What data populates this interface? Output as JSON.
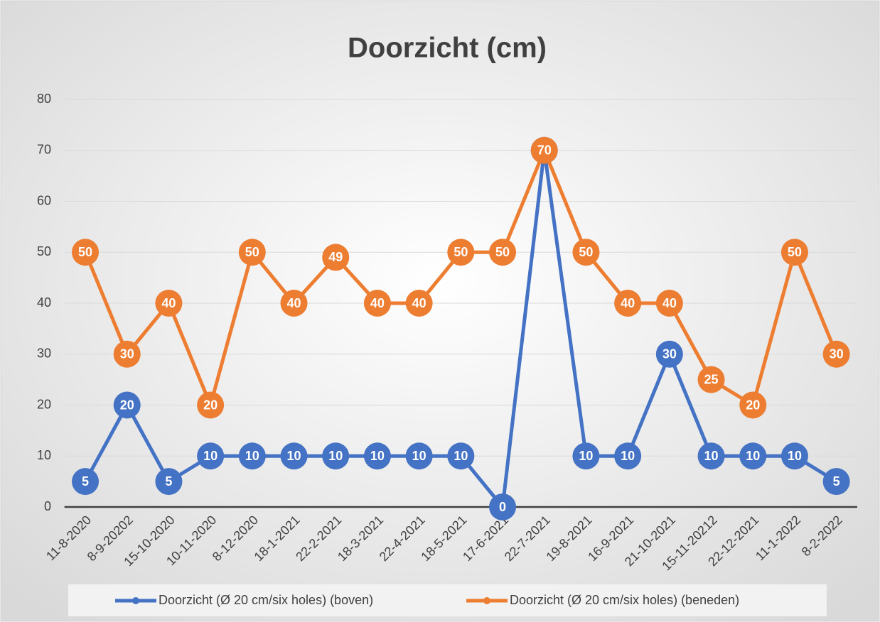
{
  "chart_data": {
    "type": "line",
    "title": "Doorzicht (cm)",
    "categories": [
      "11-8-2020",
      "8-9-20202",
      "15-10-2020",
      "10-11-2020",
      "8-12-2020",
      "18-1-2021",
      "22-2-2021",
      "18-3-2021",
      "22-4-2021",
      "18-5-2021",
      "17-6-2021",
      "22-7-2021",
      "19-8-2021",
      "16-9-2021",
      "21-10-2021",
      "15-11-20212",
      "22-12-2021",
      "11-1-2022",
      "8-2-2022"
    ],
    "series": [
      {
        "name": "Doorzicht (Ø 20 cm/six holes) (boven)",
        "color": "#4472c4",
        "values": [
          5,
          20,
          5,
          10,
          10,
          10,
          10,
          10,
          10,
          10,
          0,
          70,
          10,
          10,
          30,
          10,
          10,
          10,
          5
        ]
      },
      {
        "name": "Doorzicht (Ø 20 cm/six holes) (beneden)",
        "color": "#ed7d31",
        "values": [
          50,
          30,
          40,
          20,
          50,
          40,
          49,
          40,
          40,
          50,
          50,
          70,
          50,
          40,
          40,
          25,
          20,
          50,
          30
        ]
      }
    ],
    "ylim": [
      0,
      80
    ],
    "yticks": [
      0,
      10,
      20,
      30,
      40,
      50,
      60,
      70,
      80
    ],
    "grid": true,
    "legend": "bottom"
  }
}
